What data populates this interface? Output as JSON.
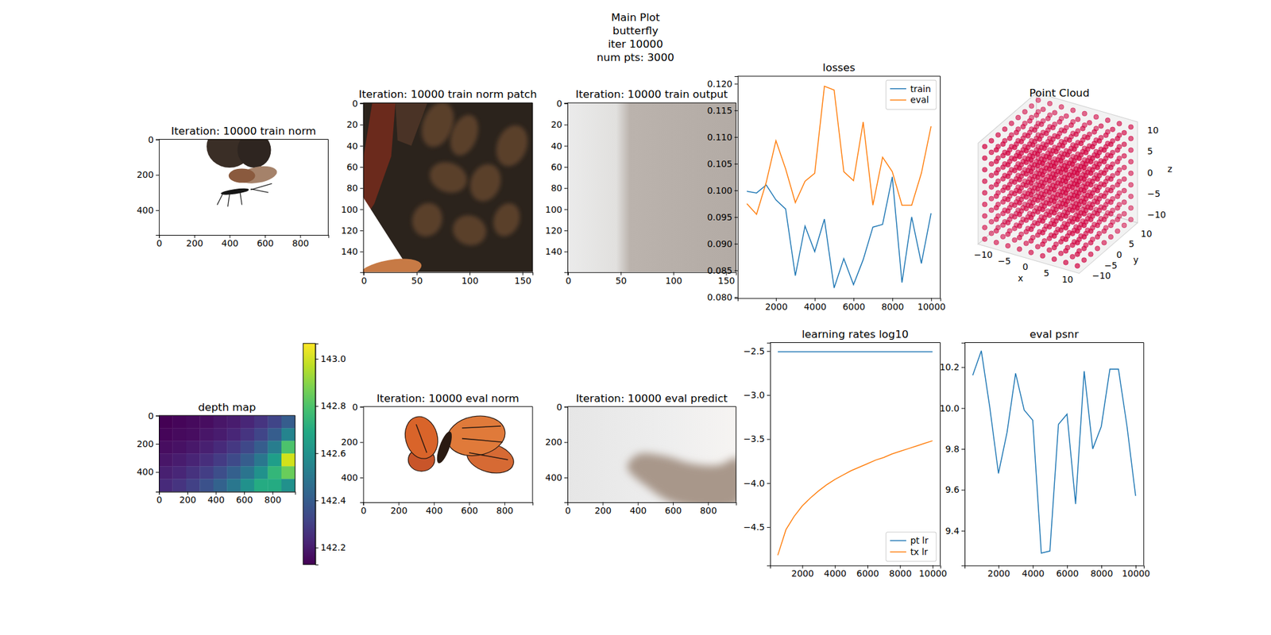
{
  "suptitle": [
    "Main Plot",
    "butterfly",
    "iter 10000",
    "num pts: 3000"
  ],
  "chart_data": [
    {
      "type": "image",
      "title": "Iteration: 10000 train norm",
      "xlim": [
        -0.5,
        959.5
      ],
      "ylim": [
        539.5,
        -0.5
      ],
      "xticks": [
        0,
        200,
        400,
        600,
        800
      ],
      "yticks": [
        0,
        200,
        400
      ]
    },
    {
      "type": "image",
      "title": "Iteration: 10000 train norm patch",
      "xlim": [
        -0.5,
        159.5
      ],
      "ylim": [
        159.5,
        -0.5
      ],
      "xticks": [
        0,
        50,
        100,
        150
      ],
      "yticks": [
        0,
        20,
        40,
        60,
        80,
        100,
        120,
        140
      ]
    },
    {
      "type": "image",
      "title": "Iteration: 10000 train output",
      "xlim": [
        -0.5,
        159.5
      ],
      "ylim": [
        159.5,
        -0.5
      ],
      "xticks": [
        0,
        50,
        100,
        150
      ],
      "yticks": [
        0,
        20,
        40,
        60,
        80,
        100,
        120,
        140
      ]
    },
    {
      "type": "line",
      "title": "losses",
      "legend": "upper right",
      "x": [
        500,
        1000,
        1500,
        2000,
        2500,
        3000,
        3500,
        4000,
        4500,
        5000,
        5500,
        6000,
        6500,
        7000,
        7500,
        8000,
        8500,
        9000,
        9500,
        10000
      ],
      "series": [
        {
          "name": "train",
          "color": "#1f77b4",
          "values": [
            0.0998,
            0.0995,
            0.101,
            0.0982,
            0.0965,
            0.084,
            0.0933,
            0.0885,
            0.0946,
            0.0817,
            0.0872,
            0.0823,
            0.087,
            0.0931,
            0.0936,
            0.1025,
            0.0827,
            0.095,
            0.0863,
            0.0957
          ]
        },
        {
          "name": "eval",
          "color": "#ff7f0e",
          "values": [
            0.0975,
            0.0955,
            0.1015,
            0.1093,
            0.104,
            0.0977,
            0.1017,
            0.1032,
            0.1195,
            0.1188,
            0.1035,
            0.1018,
            0.1128,
            0.0972,
            0.1062,
            0.1035,
            0.0972,
            0.0972,
            0.1032,
            0.112
          ]
        }
      ],
      "xlim": [
        25,
        10475
      ],
      "xticks": [
        2000,
        4000,
        6000,
        8000,
        10000
      ],
      "ylim": [
        0.0798,
        0.1214
      ],
      "yticks": [
        {
          "value": 0.08,
          "label": "0.080"
        },
        {
          "value": 0.085,
          "label": "0.085"
        },
        {
          "value": 0.09,
          "label": "0.090"
        },
        {
          "value": 0.095,
          "label": "0.095"
        },
        {
          "value": 0.1,
          "label": "0.100"
        },
        {
          "value": 0.105,
          "label": "0.105"
        },
        {
          "value": 0.11,
          "label": "0.110"
        },
        {
          "value": 0.115,
          "label": "0.115"
        },
        {
          "value": 0.12,
          "label": "0.120"
        }
      ]
    },
    {
      "type": "scatter3d",
      "title": "Point Cloud",
      "color": "#d0003f",
      "x_levels": [
        -11,
        -8.25,
        -5.5,
        -2.75,
        0,
        2.75,
        5.5,
        8.25,
        11
      ],
      "y_levels": [
        -11,
        -8.25,
        -5.5,
        -2.75,
        0,
        2.75,
        5.5,
        8.25,
        11
      ],
      "z_levels": [
        -11,
        -8.25,
        -5.5,
        -2.75,
        0,
        2.75,
        5.5,
        8.25,
        11
      ],
      "xlim": [
        -12,
        12
      ],
      "ylim": [
        -12,
        12
      ],
      "zlim": [
        -12,
        12
      ],
      "xticks": [
        {
          "value": -10,
          "label": "−10"
        },
        {
          "value": -5,
          "label": "−5"
        },
        0,
        5,
        10
      ],
      "yticks": [
        {
          "value": -10,
          "label": "−10"
        },
        {
          "value": -5,
          "label": "−5"
        },
        0,
        5,
        10
      ],
      "zticks": [
        {
          "value": -10,
          "label": "−10"
        },
        {
          "value": -5,
          "label": "−5"
        },
        0,
        5,
        10
      ],
      "xlabel": "x",
      "ylabel": "y",
      "zlabel": "z"
    },
    {
      "type": "image",
      "title": "depth map",
      "xlim": [
        -0.5,
        959.5
      ],
      "ylim": [
        539.5,
        -0.5
      ],
      "xticks": [
        0,
        200,
        400,
        600,
        800
      ],
      "yticks": [
        0,
        200,
        400
      ],
      "cells": [
        [
          142.13,
          142.14,
          142.15,
          142.16,
          142.18,
          142.2,
          142.23,
          142.27,
          142.32,
          142.4
        ],
        [
          142.14,
          142.15,
          142.16,
          142.18,
          142.2,
          142.23,
          142.27,
          142.32,
          142.4,
          142.55
        ],
        [
          142.16,
          142.17,
          142.19,
          142.21,
          142.24,
          142.28,
          142.33,
          142.4,
          142.52,
          142.8
        ],
        [
          142.18,
          142.2,
          142.22,
          142.25,
          142.29,
          142.34,
          142.4,
          142.5,
          142.65,
          143.0
        ],
        [
          142.21,
          142.23,
          142.26,
          142.3,
          142.35,
          142.41,
          142.49,
          142.6,
          142.75,
          142.85
        ],
        [
          142.24,
          142.27,
          142.31,
          142.36,
          142.42,
          142.5,
          142.6,
          142.7,
          142.7,
          142.6
        ]
      ],
      "colorbar_range": [
        142.128,
        143.065
      ],
      "colorbar_ticks": [
        142.2,
        142.4,
        142.6,
        142.8,
        {
          "value": 143,
          "label": "143.0"
        }
      ]
    },
    {
      "type": "image",
      "title": "Iteration: 10000 eval norm",
      "xlim": [
        -0.5,
        959.5
      ],
      "ylim": [
        539.5,
        -0.5
      ],
      "xticks": [
        0,
        200,
        400,
        600,
        800
      ],
      "yticks": [
        0,
        200,
        400
      ]
    },
    {
      "type": "image",
      "title": "Iteration: 10000 eval predict",
      "xlim": [
        -0.5,
        959.5
      ],
      "ylim": [
        539.5,
        -0.5
      ],
      "xticks": [
        0,
        200,
        400,
        600,
        800
      ],
      "yticks": [
        0,
        200,
        400
      ]
    },
    {
      "type": "line",
      "title": "learning rates log10",
      "legend": "lower right",
      "x": [
        500,
        1000,
        1500,
        2000,
        2500,
        3000,
        3500,
        4000,
        4500,
        5000,
        5500,
        6000,
        6500,
        7000,
        7500,
        8000,
        8500,
        9000,
        9500,
        10000
      ],
      "series": [
        {
          "name": "pt lr",
          "color": "#1f77b4",
          "values": [
            -2.51,
            -2.51,
            -2.51,
            -2.51,
            -2.51,
            -2.51,
            -2.51,
            -2.51,
            -2.51,
            -2.51,
            -2.51,
            -2.51,
            -2.51,
            -2.51,
            -2.51,
            -2.51,
            -2.51,
            -2.51,
            -2.51,
            -2.51
          ]
        },
        {
          "name": "tx lr",
          "color": "#ff7f0e",
          "values": [
            -4.82,
            -4.53,
            -4.38,
            -4.26,
            -4.17,
            -4.09,
            -4.02,
            -3.96,
            -3.91,
            -3.86,
            -3.82,
            -3.78,
            -3.74,
            -3.71,
            -3.67,
            -3.64,
            -3.61,
            -3.58,
            -3.55,
            -3.52
          ]
        }
      ],
      "xlim": [
        25,
        10475
      ],
      "xticks": [
        2000,
        4000,
        6000,
        8000,
        10000
      ],
      "ylim": [
        -4.935,
        -2.405
      ],
      "yticks": [
        {
          "value": -2.5,
          "label": "−2.5"
        },
        {
          "value": -3,
          "label": "−3.0"
        },
        {
          "value": -3.5,
          "label": "−3.5"
        },
        {
          "value": -4,
          "label": "−4.0"
        },
        {
          "value": -4.5,
          "label": "−4.5"
        }
      ]
    },
    {
      "type": "line",
      "title": "eval psnr",
      "x": [
        500,
        1000,
        1500,
        2000,
        2500,
        3000,
        3500,
        4000,
        4500,
        5000,
        5500,
        6000,
        6500,
        7000,
        7500,
        8000,
        8500,
        9000,
        9500,
        10000
      ],
      "series": [
        {
          "color": "#1f77b4",
          "values": [
            10.16,
            10.28,
            10.0,
            9.68,
            9.88,
            10.17,
            9.99,
            9.94,
            9.29,
            9.3,
            9.92,
            9.97,
            9.53,
            10.18,
            9.8,
            9.91,
            10.19,
            10.19,
            9.91,
            9.57
          ]
        }
      ],
      "xlim": [
        25,
        10475
      ],
      "xticks": [
        2000,
        4000,
        6000,
        8000,
        10000
      ],
      "ylim": [
        9.23,
        10.32
      ],
      "yticks": [
        9.4,
        9.6,
        9.8,
        {
          "value": 10,
          "label": "10.0"
        },
        10.2
      ]
    }
  ]
}
